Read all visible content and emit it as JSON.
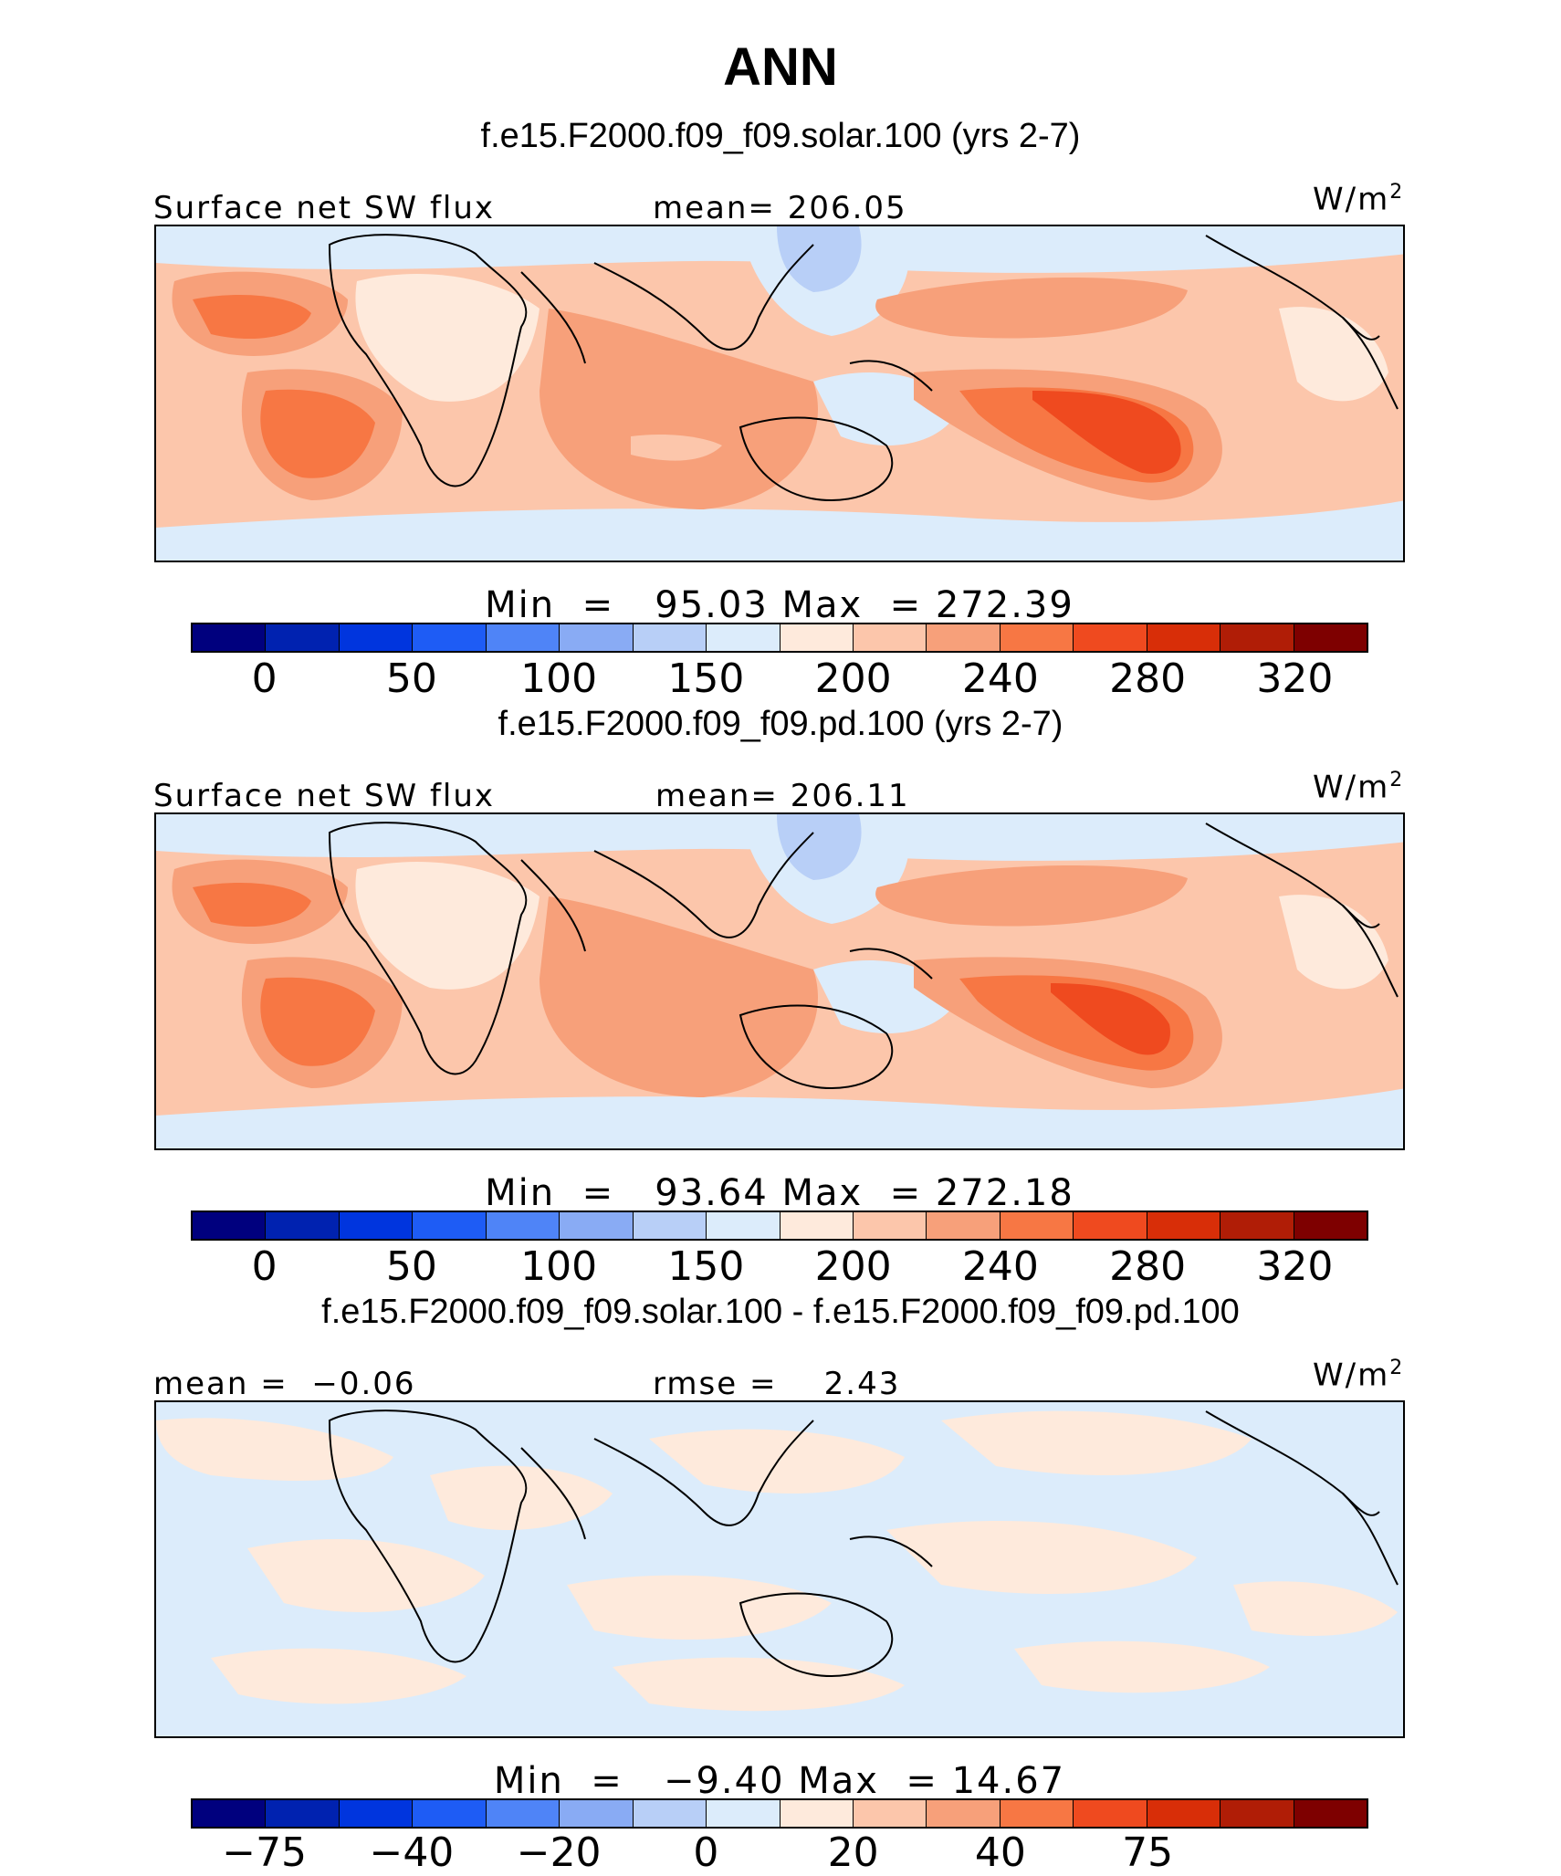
{
  "title": "ANN",
  "units": "W/m",
  "units_exp": "2",
  "colorbar_colors": [
    "#00007e",
    "#0022b0",
    "#0035de",
    "#1e5cf5",
    "#4f84f7",
    "#89abf4",
    "#b8cff7",
    "#dcecfb",
    "#feeadc",
    "#fcc6ab",
    "#f7a07a",
    "#f77744",
    "#ef4a1f",
    "#d82e08",
    "#b01d06",
    "#7e0000"
  ],
  "panels": [
    {
      "case_title": "f.e15.F2000.f09_f09.solar.100 (yrs 2-7)",
      "left_label": "Surface net SW flux",
      "center_label": "mean= 206.05",
      "min_label": "Min  =",
      "min_value": "95.03",
      "max_label": "Max  =",
      "max_value": "272.39",
      "tick_labels": [
        "0",
        "50",
        "100",
        "150",
        "200",
        "240",
        "280",
        "320"
      ]
    },
    {
      "case_title": "f.e15.F2000.f09_f09.pd.100 (yrs 2-7)",
      "left_label": "Surface net SW flux",
      "center_label": "mean= 206.11",
      "min_label": "Min  =",
      "min_value": "93.64",
      "max_label": "Max  =",
      "max_value": "272.18",
      "tick_labels": [
        "0",
        "50",
        "100",
        "150",
        "200",
        "240",
        "280",
        "320"
      ]
    },
    {
      "case_title": "f.e15.F2000.f09_f09.solar.100 - f.e15.F2000.f09_f09.pd.100",
      "left_label": "mean =  −0.06",
      "center_label": "rmse =    2.43",
      "min_label": "Min  =",
      "min_value": "−9.40",
      "max_label": "Max  =",
      "max_value": "14.67",
      "tick_labels": [
        "−75",
        "−40",
        "−20",
        "0",
        "20",
        "40",
        "75"
      ]
    }
  ]
}
